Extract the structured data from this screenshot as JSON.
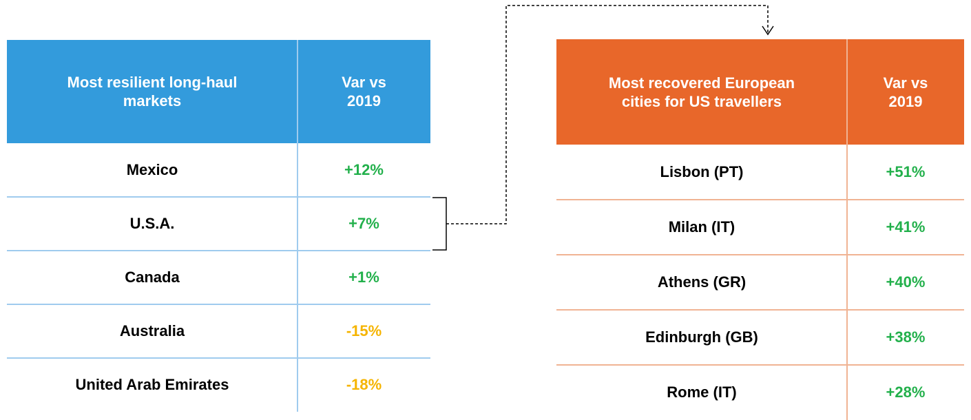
{
  "left_table": {
    "headers": [
      "Most resilient long-haul markets",
      "Var vs 2019"
    ],
    "rows": [
      [
        "Mexico",
        "+12%"
      ],
      [
        "U.S.A.",
        "+7%"
      ],
      [
        "Canada",
        "+1%"
      ],
      [
        "Australia",
        "-15%"
      ],
      [
        "United Arab Emirates",
        "-18%"
      ]
    ]
  },
  "right_table": {
    "headers": [
      "Most recovered European cities for US travellers",
      "Var vs 2019"
    ],
    "rows": [
      [
        "Lisbon (PT)",
        "+51%"
      ],
      [
        "Milan (IT)",
        "+41%"
      ],
      [
        "Athens (GR)",
        "+40%"
      ],
      [
        "Edinburgh (GB)",
        "+38%"
      ],
      [
        "Rome (IT)",
        "+28%"
      ]
    ]
  }
}
